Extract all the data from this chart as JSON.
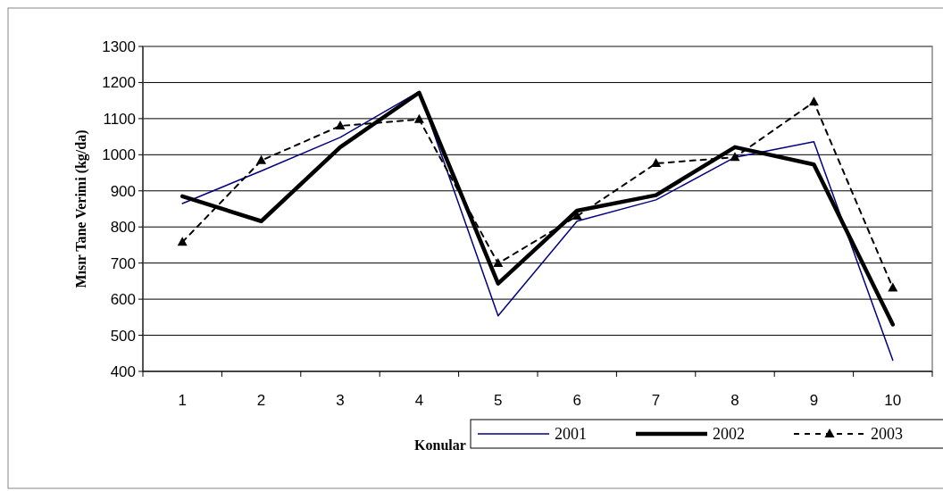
{
  "chart_data": {
    "type": "line",
    "xlabel": "Konular",
    "ylabel": "Mısır Tane Verimi (kg/da)",
    "categories": [
      "1",
      "2",
      "3",
      "4",
      "5",
      "6",
      "7",
      "8",
      "9",
      "10"
    ],
    "ylim": [
      400,
      1300
    ],
    "yticks": [
      400,
      500,
      600,
      700,
      800,
      900,
      1000,
      1100,
      1200,
      1300
    ],
    "grid": "y",
    "legend": "bottom right",
    "series": [
      {
        "name": "2001",
        "color": "#000080",
        "values": [
          865,
          955,
          1048,
          1175,
          554,
          816,
          875,
          993,
          1036,
          431
        ],
        "line_style": "solid",
        "marker": "none"
      },
      {
        "name": "2002",
        "color": "#000000",
        "values": [
          885,
          816,
          1021,
          1172,
          643,
          845,
          888,
          1021,
          973,
          530
        ],
        "line_style": "solid",
        "marker": "none"
      },
      {
        "name": "2003",
        "color": "#000000",
        "values": [
          758,
          984,
          1080,
          1098,
          699,
          830,
          976,
          993,
          1146,
          631
        ],
        "line_style": "dashed",
        "marker": "triangle"
      }
    ]
  }
}
